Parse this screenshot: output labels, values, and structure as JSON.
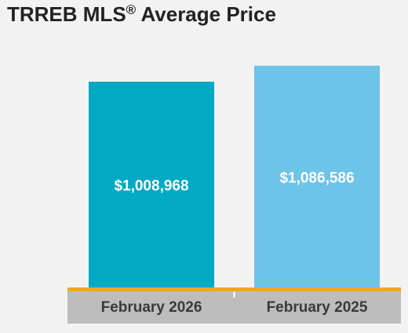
{
  "chart_data": {
    "type": "bar",
    "title": "TRREB MLS",
    "title_mark": "®",
    "title_suffix": " Average Price",
    "categories": [
      "February 2026",
      "February 2025"
    ],
    "values": [
      1008968,
      1086586
    ],
    "value_labels": [
      "$1,008,968",
      "$1,086,586"
    ],
    "colors": [
      "#00a9c4",
      "#6ec3e8"
    ],
    "ylim": [
      0,
      1150000
    ],
    "grid": false,
    "legend": "none",
    "baseline_color": "#f0a818",
    "axis_band_color": "#bdbdbd"
  }
}
